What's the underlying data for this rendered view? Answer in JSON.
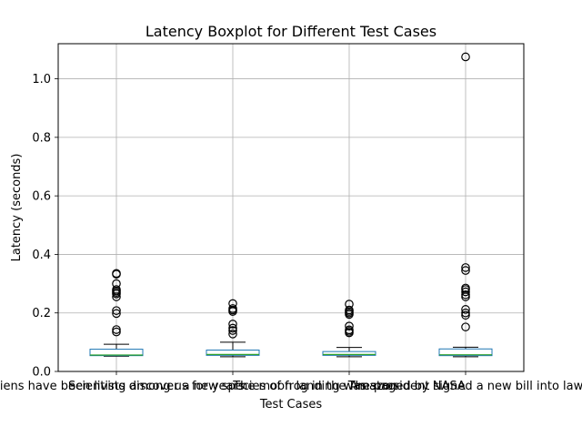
{
  "chart_data": {
    "type": "boxplot",
    "title": "Latency Boxplot for Different Test Cases",
    "xlabel": "Test Cases",
    "ylabel": "Latency (seconds)",
    "ylim": [
      0.0,
      1.12
    ],
    "yticks": [
      "0.0",
      "0.2",
      "0.4",
      "0.6",
      "0.8",
      "1.0"
    ],
    "grid": true,
    "colors": {
      "box": "#1f77b4",
      "median": "#2ca02c",
      "whisker": "#000000",
      "grid": "#b0b0b0"
    },
    "categories": [
      "Aliens have been living among us for years",
      "Scientists discover a new species of frog in the Amazon",
      "The moon landing was staged by NASA",
      "The president signed a new bill into law"
    ],
    "boxes": [
      {
        "whisker_low": 0.052,
        "q1": 0.054,
        "median": 0.056,
        "q3": 0.076,
        "whisker_high": 0.093,
        "outliers": [
          0.135,
          0.143,
          0.198,
          0.208,
          0.255,
          0.265,
          0.27,
          0.275,
          0.28,
          0.3,
          0.332,
          0.335
        ]
      },
      {
        "whisker_low": 0.05,
        "q1": 0.055,
        "median": 0.058,
        "q3": 0.073,
        "whisker_high": 0.1,
        "outliers": [
          0.128,
          0.14,
          0.148,
          0.162,
          0.205,
          0.21,
          0.215,
          0.232
        ]
      },
      {
        "whisker_low": 0.05,
        "q1": 0.055,
        "median": 0.058,
        "q3": 0.068,
        "whisker_high": 0.082,
        "outliers": [
          0.132,
          0.137,
          0.142,
          0.155,
          0.195,
          0.2,
          0.205,
          0.21,
          0.23
        ]
      },
      {
        "whisker_low": 0.05,
        "q1": 0.054,
        "median": 0.057,
        "q3": 0.077,
        "whisker_high": 0.083,
        "outliers": [
          0.152,
          0.192,
          0.2,
          0.212,
          0.255,
          0.262,
          0.272,
          0.28,
          0.285,
          0.345,
          0.355,
          1.075
        ]
      }
    ]
  }
}
